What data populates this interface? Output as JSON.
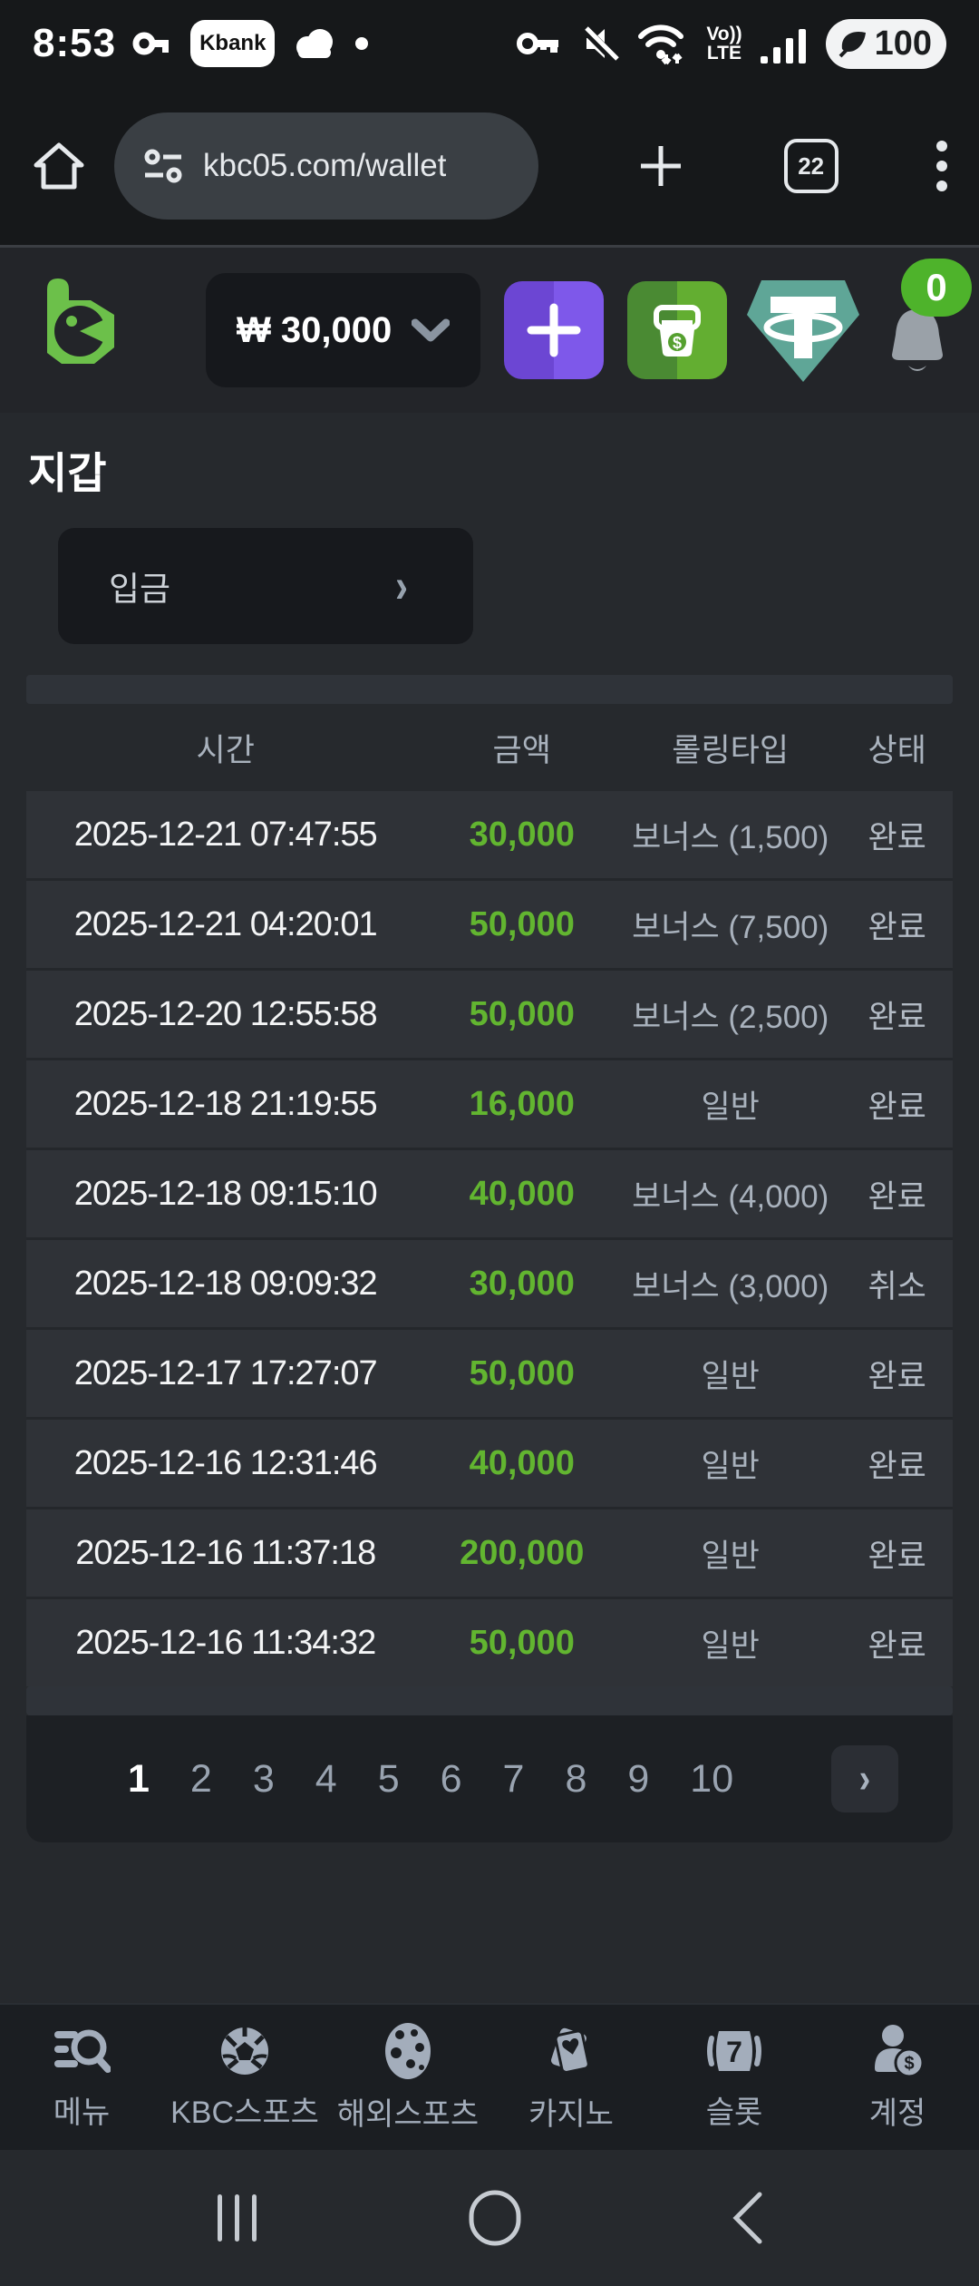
{
  "status_bar": {
    "time": "8:53",
    "operator_badge": "Kbank",
    "volte_top": "Vo))",
    "volte_bottom": "LTE",
    "battery_percent": "100"
  },
  "browser": {
    "url": "kbc05.com/wallet",
    "tab_count": "22"
  },
  "site_header": {
    "balance": "₩ 30,000",
    "notification_count": "0"
  },
  "page": {
    "title": "지갑",
    "deposit_label": "입금",
    "deposit_chevron": "›"
  },
  "table": {
    "headers": [
      "시간",
      "금액",
      "롤링타입",
      "상태"
    ],
    "rows": [
      {
        "time": "2025-12-21 07:47:55",
        "amount": "30,000",
        "type": "보너스 (1,500)",
        "status": "완료"
      },
      {
        "time": "2025-12-21 04:20:01",
        "amount": "50,000",
        "type": "보너스 (7,500)",
        "status": "완료"
      },
      {
        "time": "2025-12-20 12:55:58",
        "amount": "50,000",
        "type": "보너스 (2,500)",
        "status": "완료"
      },
      {
        "time": "2025-12-18 21:19:55",
        "amount": "16,000",
        "type": "일반",
        "status": "완료"
      },
      {
        "time": "2025-12-18 09:15:10",
        "amount": "40,000",
        "type": "보너스 (4,000)",
        "status": "완료"
      },
      {
        "time": "2025-12-18 09:09:32",
        "amount": "30,000",
        "type": "보너스 (3,000)",
        "status": "취소"
      },
      {
        "time": "2025-12-17 17:27:07",
        "amount": "50,000",
        "type": "일반",
        "status": "완료"
      },
      {
        "time": "2025-12-16 12:31:46",
        "amount": "40,000",
        "type": "일반",
        "status": "완료"
      },
      {
        "time": "2025-12-16 11:37:18",
        "amount": "200,000",
        "type": "일반",
        "status": "완료"
      },
      {
        "time": "2025-12-16 11:34:32",
        "amount": "50,000",
        "type": "일반",
        "status": "완료"
      }
    ]
  },
  "pagination": {
    "pages": [
      {
        "label": "1",
        "active": true
      },
      {
        "label": "2"
      },
      {
        "label": "3"
      },
      {
        "label": "4"
      },
      {
        "label": "5"
      },
      {
        "label": "6"
      },
      {
        "label": "7"
      },
      {
        "label": "8"
      },
      {
        "label": "9"
      },
      {
        "label": "10"
      }
    ],
    "next_label": "›"
  },
  "bottom_nav": {
    "items": [
      {
        "label": "메뉴"
      },
      {
        "label": "KBC스포츠"
      },
      {
        "label": "해외스포츠"
      },
      {
        "label": "카지노"
      },
      {
        "label": "슬롯"
      },
      {
        "label": "계정"
      }
    ]
  },
  "colors": {
    "accent_green": "#62b530",
    "badge_green": "#4eb32b",
    "logo_green": "#6cc04a",
    "tether_teal": "#5fa697",
    "button_purple": "#7e58ea",
    "button_green": "#63ae31",
    "page_bg": "#26292d",
    "row_bg": "#2f3237"
  }
}
